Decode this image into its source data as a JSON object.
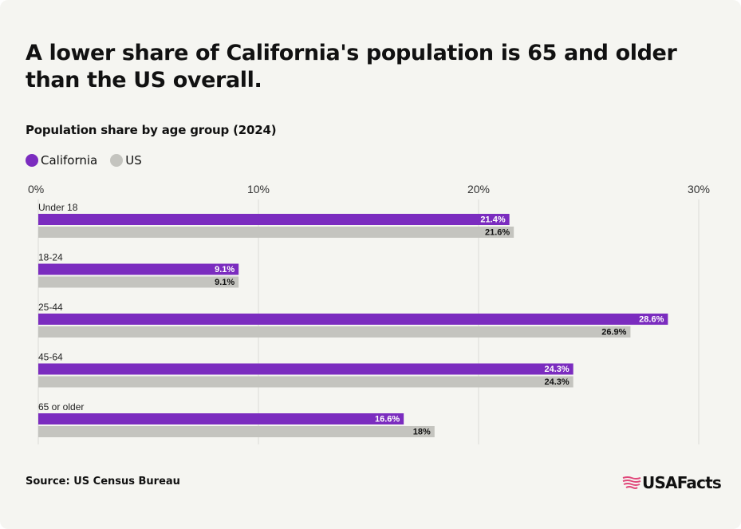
{
  "header": {
    "title": "A lower share of California's population is 65 and older than the US overall.",
    "subtitle": "Population share by age group (2024)"
  },
  "legend": [
    {
      "label": "California",
      "color": "#7b2cbf"
    },
    {
      "label": "US",
      "color": "#c4c4bf"
    }
  ],
  "footer": {
    "source": "Source: US Census Bureau",
    "brand": "USAFacts",
    "brand_icon": "us-flag-map-icon"
  },
  "colors": {
    "california": "#7b2cbf",
    "us": "#c4c4bf",
    "grid": "#dcdcd6",
    "background": "#f5f5f1",
    "brand_accent": "#e0477a"
  },
  "chart_data": {
    "type": "bar",
    "orientation": "horizontal",
    "categories": [
      "Under 18",
      "18-24",
      "25-44",
      "45-64",
      "65 or older"
    ],
    "series": [
      {
        "name": "California",
        "values": [
          21.4,
          9.1,
          28.6,
          24.3,
          16.6
        ],
        "labels": [
          "21.4%",
          "9.1%",
          "28.6%",
          "24.3%",
          "16.6%"
        ]
      },
      {
        "name": "US",
        "values": [
          21.6,
          9.1,
          26.9,
          24.3,
          18
        ],
        "labels": [
          "21.6%",
          "9.1%",
          "26.9%",
          "24.3%",
          "18%"
        ]
      }
    ],
    "xlim": [
      0,
      30
    ],
    "xticks": [
      0,
      10,
      20,
      30
    ],
    "xtick_labels": [
      "0%",
      "10%",
      "20%",
      "30%"
    ],
    "tick_position": "top",
    "grid": true,
    "legend_position": "top-left"
  }
}
